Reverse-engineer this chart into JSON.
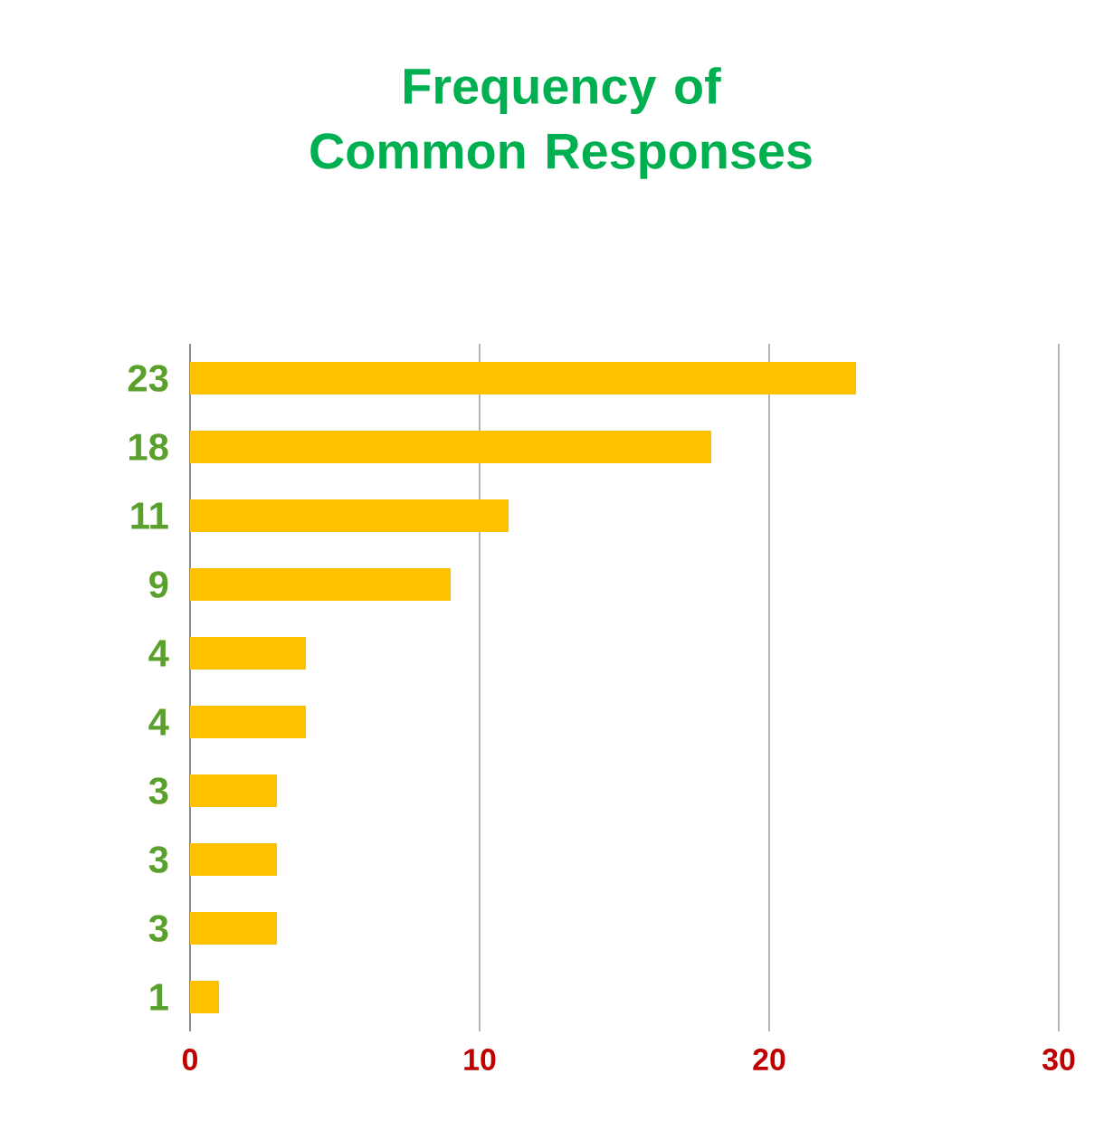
{
  "chart_data": {
    "type": "bar",
    "orientation": "horizontal",
    "title": "Frequency of Common Responses",
    "categories": [
      "23",
      "18",
      "11",
      "9",
      "4",
      "4",
      "3",
      "3",
      "3",
      "1"
    ],
    "values": [
      23,
      18,
      11,
      9,
      4,
      4,
      3,
      3,
      3,
      1
    ],
    "color": "#ffc000",
    "xlim": [
      0,
      30
    ],
    "xticks": [
      0,
      10,
      20,
      30
    ],
    "grid": "x"
  }
}
